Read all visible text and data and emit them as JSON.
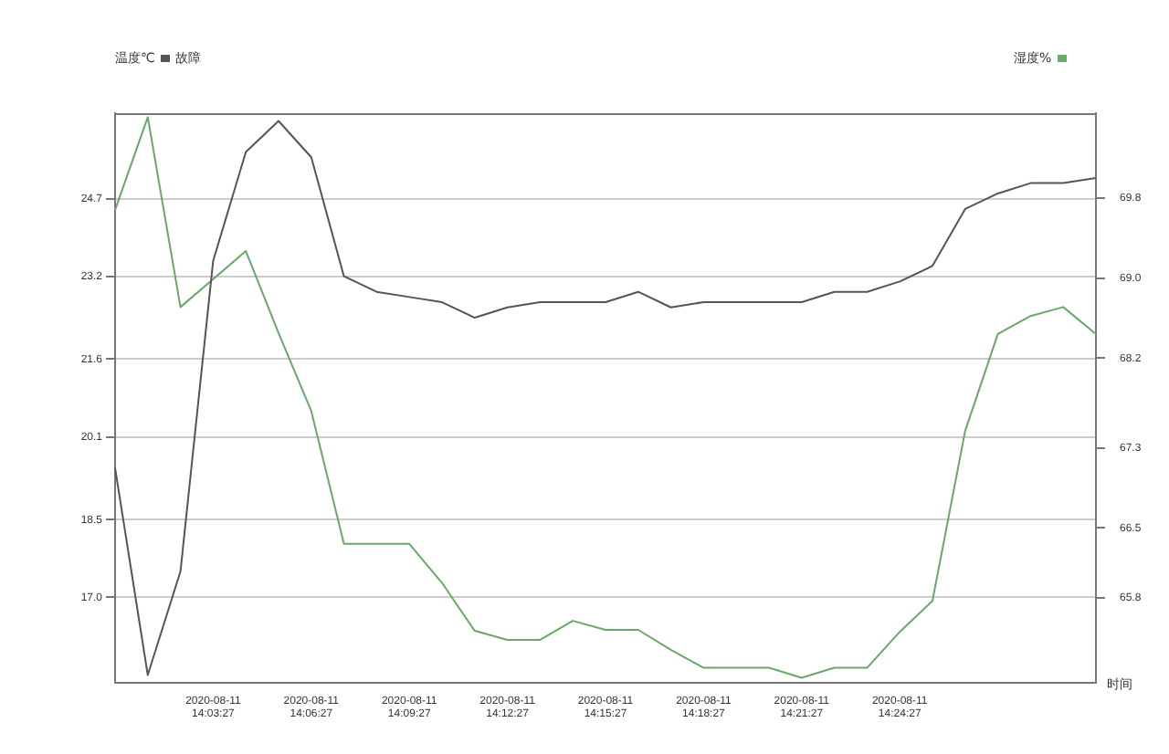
{
  "chart_data": {
    "type": "line",
    "categories": [
      null,
      null,
      null,
      "2020-08-11 14:03:27",
      null,
      null,
      "2020-08-11 14:06:27",
      null,
      null,
      "2020-08-11 14:09:27",
      null,
      null,
      "2020-08-11 14:12:27",
      null,
      null,
      "2020-08-11 14:15:27",
      null,
      null,
      "2020-08-11 14:18:27",
      null,
      null,
      "2020-08-11 14:21:27",
      null,
      null,
      "2020-08-11 14:24:27",
      null,
      null,
      null,
      null,
      null,
      null
    ],
    "series": [
      {
        "name": "故障",
        "color": "#555555",
        "axis": "y",
        "values": [
          19.5,
          15.5,
          17.5,
          23.5,
          25.6,
          26.2,
          25.5,
          23.2,
          22.9,
          22.8,
          22.7,
          22.4,
          22.6,
          22.7,
          22.7,
          22.7,
          22.9,
          22.6,
          22.7,
          22.7,
          22.7,
          22.7,
          22.9,
          22.9,
          23.1,
          23.4,
          24.5,
          24.8,
          25.0,
          25.0,
          25.1
        ]
      },
      {
        "color": "#6aa86a",
        "axis": "y2",
        "values": [
          69.68,
          70.61,
          68.71,
          68.99,
          69.27,
          68.45,
          67.67,
          66.34,
          66.34,
          66.34,
          65.95,
          65.47,
          65.38,
          65.38,
          65.57,
          65.48,
          65.48,
          65.28,
          65.1,
          65.1,
          65.1,
          65.0,
          65.1,
          65.1,
          65.46,
          65.77,
          67.47,
          68.44,
          68.62,
          68.71,
          68.44
        ]
      }
    ],
    "ylabel": "温度℃",
    "y2label": "湿度%",
    "xlabel": "时间",
    "ylim": [
      15.35,
      26.35
    ],
    "yticks": [
      {
        "value": 17,
        "label": "17.0"
      },
      18.5,
      20.1,
      21.6,
      23.2,
      24.7
    ],
    "y2lim": [
      64.95,
      70.65
    ],
    "y2ticks": [
      65.8,
      66.5,
      67.3,
      68.2,
      {
        "value": 69,
        "label": "69.0"
      },
      69.8
    ],
    "grid": "y",
    "legend": "top left",
    "marker": "none",
    "line_style": "solid"
  }
}
